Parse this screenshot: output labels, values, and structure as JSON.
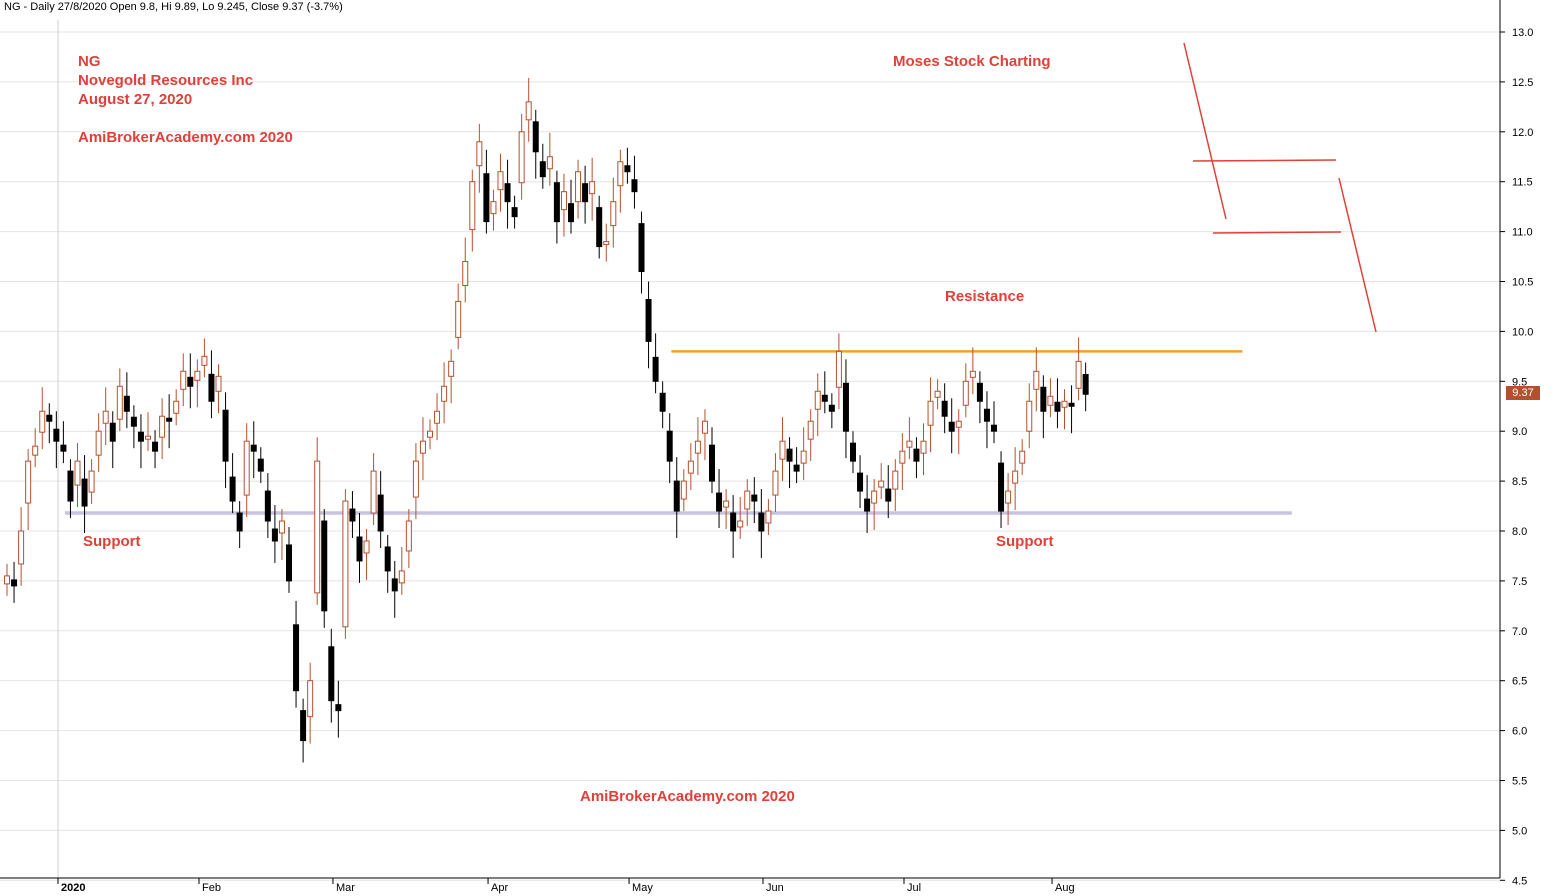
{
  "header": {
    "text": "NG - Daily 27/8/2020 Open 9.8, Hi 9.89, Lo 9.245, Close 9.37 (-3.7%)"
  },
  "annotations": {
    "ticker": "NG",
    "company": "Novegold Resources Inc",
    "date": "August 27, 2020",
    "watermark_top": "AmiBrokerAcademy.com  2020",
    "brand": "Moses Stock Charting",
    "resistance_label": "Resistance",
    "support_label_left": "Support",
    "support_label_right": "Support",
    "watermark_bottom": "AmiBrokerAcademy.com  2020"
  },
  "last_price_label": "9.37",
  "colors": {
    "up_candle": "#b5502f",
    "down_candle": "#000000",
    "resistance_line": "#f0a030",
    "support_line": "#c8c4e0",
    "annotation": "#e0403a",
    "grid": "#e4e4e4"
  },
  "chart_data": {
    "type": "candlestick",
    "y_ticks": [
      "13.0",
      "12.5",
      "12.0",
      "11.5",
      "11.0",
      "10.5",
      "10.0",
      "9.5",
      "9.0",
      "8.5",
      "8.0",
      "7.5",
      "7.0",
      "6.5",
      "6.0",
      "5.5",
      "5.0",
      "4.5"
    ],
    "ylim": [
      4.5,
      13.0
    ],
    "x_ticks": [
      {
        "label": "2020",
        "day": 0
      },
      {
        "label": "Feb",
        "day": 20
      },
      {
        "label": "Mar",
        "day": 39
      },
      {
        "label": "Apr",
        "day": 61
      },
      {
        "label": "May",
        "day": 81
      },
      {
        "label": "Jun",
        "day": 100
      },
      {
        "label": "Jul",
        "day": 120
      },
      {
        "label": "Aug",
        "day": 141
      }
    ],
    "grid": true,
    "resistance": {
      "value": 9.8,
      "from_day": 87,
      "to_day": 168
    },
    "support": {
      "value": 8.18,
      "from_day": 1,
      "to_day": 175
    },
    "close_series_approx": [
      7.55,
      7.45,
      8.0,
      8.7,
      8.85,
      9.2,
      9.1,
      8.9,
      8.8,
      8.3,
      8.7,
      8.25,
      8.6,
      9.0,
      9.2,
      8.9,
      9.45,
      9.2,
      9.05,
      8.9,
      8.95,
      8.8,
      9.15,
      9.1,
      9.3,
      9.6,
      9.45,
      9.6,
      9.75,
      9.3,
      9.55,
      8.7,
      8.3,
      8.0,
      8.9,
      8.8,
      8.6,
      8.1,
      7.9,
      8.1,
      7.5,
      6.4,
      5.9,
      6.5,
      8.7,
      7.2,
      6.3,
      6.2,
      8.3,
      8.1,
      7.7,
      7.9,
      8.6,
      8.0,
      7.6,
      7.4,
      7.6,
      8.1,
      8.7,
      8.9,
      9.0,
      9.2,
      9.45,
      9.7,
      10.3,
      10.7,
      11.5,
      11.9,
      11.1,
      11.3,
      11.6,
      11.3,
      11.15,
      12.0,
      12.3,
      11.8,
      11.55,
      11.75,
      11.1,
      11.4,
      11.1,
      11.6,
      11.3,
      11.5,
      10.85,
      10.9,
      11.3,
      11.7,
      11.6,
      11.4,
      10.6,
      9.9,
      9.5,
      9.2,
      8.7,
      8.2,
      8.5,
      8.7,
      8.9,
      9.1,
      8.5,
      8.2,
      8.3,
      8.0,
      8.1,
      8.4,
      8.3,
      8.0,
      8.2,
      8.6,
      8.9,
      8.7,
      8.6,
      8.8,
      9.1,
      9.4,
      9.3,
      9.2,
      9.8,
      9.0,
      8.7,
      8.4,
      8.2,
      8.4,
      8.5,
      8.3,
      8.6,
      8.8,
      8.9,
      8.7,
      8.9,
      9.3,
      9.4,
      9.15,
      9.0,
      9.1,
      9.5,
      9.6,
      9.3,
      9.1,
      9.0,
      8.2,
      8.4,
      8.6,
      8.8,
      9.3,
      9.6,
      9.2,
      9.35,
      9.2,
      9.3,
      9.25,
      9.7,
      9.37
    ]
  }
}
